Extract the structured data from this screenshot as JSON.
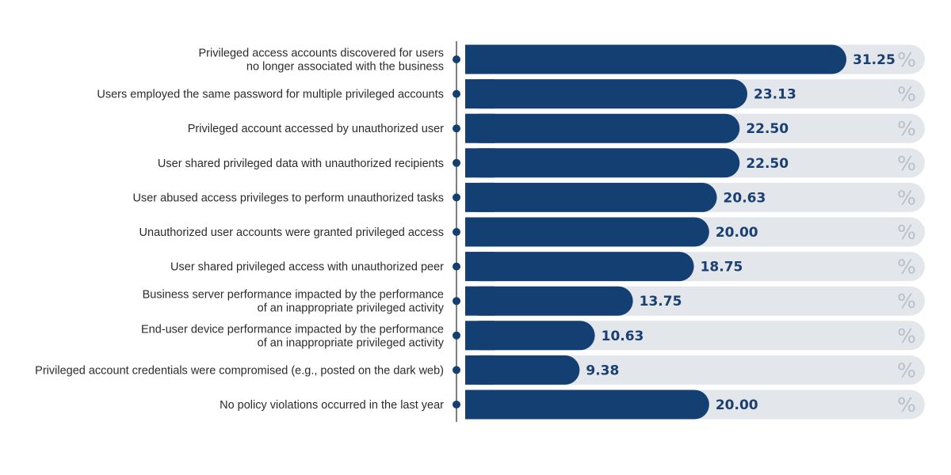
{
  "chart_data": {
    "type": "bar",
    "orientation": "horizontal",
    "categories": [
      [
        "Privileged access accounts discovered for users",
        "no longer associated with the business"
      ],
      [
        "Users employed the same password for multiple privileged accounts"
      ],
      [
        "Privileged account accessed by unauthorized user"
      ],
      [
        "User shared privileged data with unauthorized recipients"
      ],
      [
        "User abused access privileges to perform unauthorized tasks"
      ],
      [
        "Unauthorized user accounts were granted privileged access"
      ],
      [
        "User shared privileged access with unauthorized peer"
      ],
      [
        "Business server performance impacted by the performance",
        "of an inappropriate privileged activity"
      ],
      [
        "End-user device performance impacted by the performance",
        "of an inappropriate privileged activity"
      ],
      [
        "Privileged account credentials were compromised (e.g., posted on the dark web)"
      ],
      [
        "No policy violations occurred in the last year"
      ]
    ],
    "values": [
      31.25,
      23.13,
      22.5,
      22.5,
      20.63,
      20.0,
      18.75,
      13.75,
      10.63,
      9.38,
      20.0
    ],
    "value_labels": [
      "31.25",
      "23.13",
      "22.50",
      "22.50",
      "20.63",
      "20.00",
      "18.75",
      "13.75",
      "10.63",
      "9.38",
      "20.00"
    ],
    "unit_symbol": "%",
    "xlim": [
      0,
      40
    ],
    "grid": false,
    "colors": {
      "bar": "#143f73",
      "track": "#e3e6eb",
      "value_text": "#1a3f72",
      "percent_text": "#b9bfc8",
      "axis": "#555555",
      "dot": "#143f73",
      "label_text": "#2b2b2b"
    }
  }
}
